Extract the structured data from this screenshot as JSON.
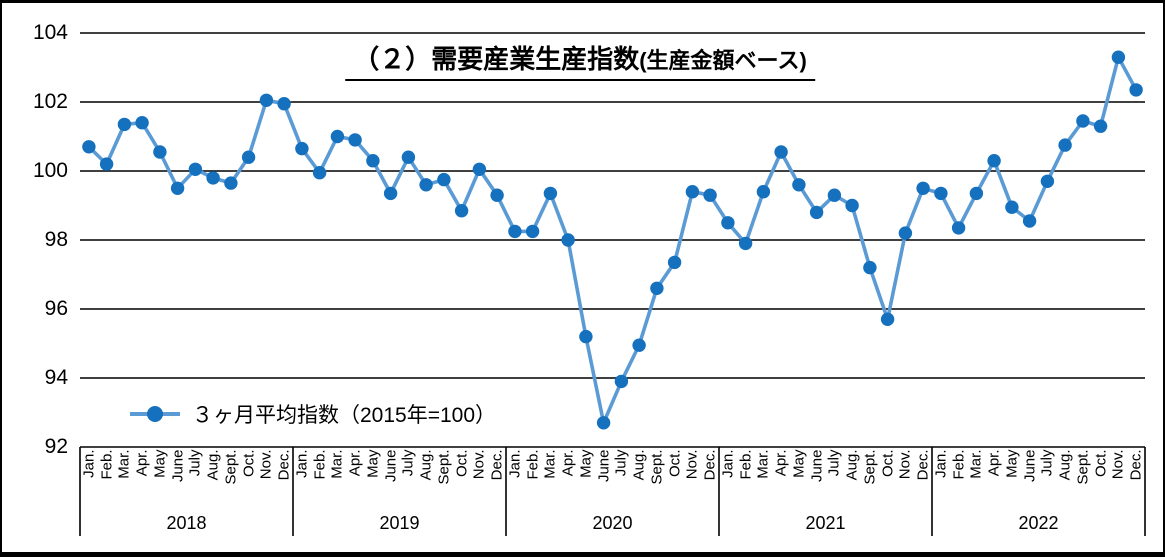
{
  "title": {
    "main": "（２）需要産業生産指数",
    "suffix": "(生産金額ベース)"
  },
  "legend": {
    "label": "３ヶ月平均指数（2015年=100）"
  },
  "colors": {
    "line": "#5B9BD5",
    "marker": "#1570BE",
    "grid": "#000000"
  },
  "chart_data": {
    "type": "line",
    "title": "（２）需要産業生産指数(生産金額ベース)",
    "ylabel": "",
    "xlabel": "",
    "ylim": [
      92,
      104
    ],
    "yticks": [
      104,
      102,
      100,
      98,
      96,
      94,
      92
    ],
    "grid": "horizontal",
    "legend_position": "inside-bottom-left",
    "month_labels": [
      "Jan.",
      "Feb.",
      "Mar.",
      "Apr.",
      "May",
      "June",
      "July",
      "Aug.",
      "Sept.",
      "Oct.",
      "Nov.",
      "Dec."
    ],
    "years": [
      "2018",
      "2019",
      "2020",
      "2021",
      "2022"
    ],
    "series": [
      {
        "name": "３ヶ月平均指数（2015年=100）",
        "values_by_year": {
          "2018": [
            100.7,
            100.2,
            101.35,
            101.4,
            100.55,
            99.5,
            100.05,
            99.8,
            99.65,
            100.4,
            102.05,
            101.95
          ],
          "2019": [
            100.65,
            99.95,
            101.0,
            100.9,
            100.3,
            99.35,
            100.4,
            99.6,
            99.75,
            98.85,
            100.05,
            99.3
          ],
          "2020": [
            98.25,
            98.25,
            99.35,
            98.0,
            95.2,
            92.7,
            93.9,
            94.95,
            96.6,
            97.35,
            99.4,
            99.3
          ],
          "2021": [
            98.5,
            97.9,
            99.4,
            100.55,
            99.6,
            98.8,
            99.3,
            99.0,
            97.2,
            95.7,
            98.2,
            99.5
          ],
          "2022": [
            99.35,
            98.35,
            99.35,
            100.3,
            98.95,
            98.55,
            99.7,
            100.75,
            101.45,
            101.3,
            103.3,
            102.35
          ]
        }
      }
    ]
  }
}
